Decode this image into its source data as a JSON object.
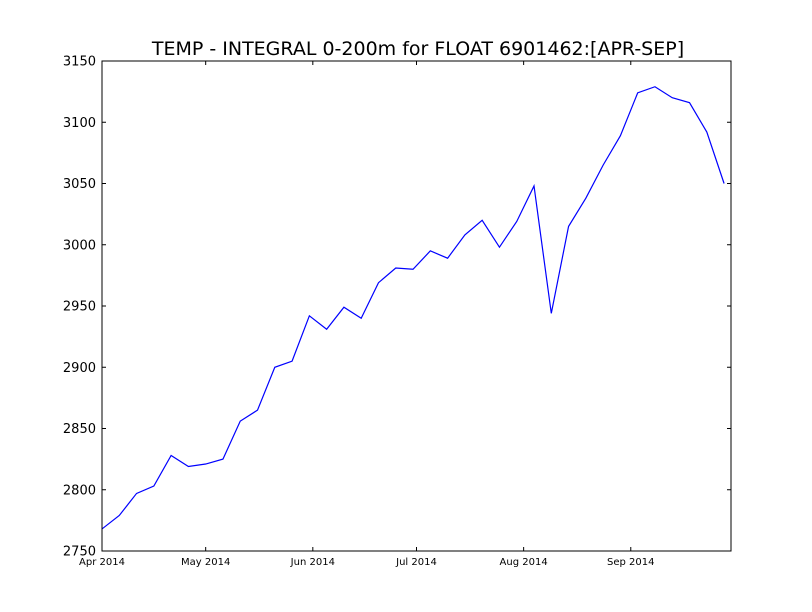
{
  "chart_data": {
    "type": "line",
    "title": "TEMP - INTEGRAL 0-200m for FLOAT 6901462:[APR-SEP]",
    "xlabel": "",
    "ylabel": "",
    "x_axis_type": "date",
    "xlim": [
      "2014-04-01",
      "2014-09-30"
    ],
    "ylim": [
      2750,
      3150
    ],
    "grid": false,
    "x_ticks": [
      {
        "value": "2014-04-01",
        "label": "Apr 2014"
      },
      {
        "value": "2014-05-01",
        "label": "May 2014"
      },
      {
        "value": "2014-06-01",
        "label": "Jun 2014"
      },
      {
        "value": "2014-07-01",
        "label": "Jul 2014"
      },
      {
        "value": "2014-08-01",
        "label": "Aug 2014"
      },
      {
        "value": "2014-09-01",
        "label": "Sep 2014"
      }
    ],
    "y_ticks": [
      {
        "value": 2750,
        "label": "2750"
      },
      {
        "value": 2800,
        "label": "2800"
      },
      {
        "value": 2850,
        "label": "2850"
      },
      {
        "value": 2900,
        "label": "2900"
      },
      {
        "value": 2950,
        "label": "2950"
      },
      {
        "value": 3000,
        "label": "3000"
      },
      {
        "value": 3050,
        "label": "3050"
      },
      {
        "value": 3100,
        "label": "3100"
      },
      {
        "value": 3150,
        "label": "3150"
      }
    ],
    "series": [
      {
        "color": "#0000ff",
        "points": [
          {
            "x": "2014-04-01",
            "y": 2768
          },
          {
            "x": "2014-04-06",
            "y": 2779
          },
          {
            "x": "2014-04-11",
            "y": 2797
          },
          {
            "x": "2014-04-16",
            "y": 2803
          },
          {
            "x": "2014-04-21",
            "y": 2828
          },
          {
            "x": "2014-04-26",
            "y": 2819
          },
          {
            "x": "2014-05-01",
            "y": 2821
          },
          {
            "x": "2014-05-06",
            "y": 2825
          },
          {
            "x": "2014-05-11",
            "y": 2856
          },
          {
            "x": "2014-05-16",
            "y": 2865
          },
          {
            "x": "2014-05-21",
            "y": 2900
          },
          {
            "x": "2014-05-26",
            "y": 2905
          },
          {
            "x": "2014-05-31",
            "y": 2942
          },
          {
            "x": "2014-06-05",
            "y": 2931
          },
          {
            "x": "2014-06-10",
            "y": 2949
          },
          {
            "x": "2014-06-15",
            "y": 2940
          },
          {
            "x": "2014-06-20",
            "y": 2969
          },
          {
            "x": "2014-06-25",
            "y": 2981
          },
          {
            "x": "2014-06-30",
            "y": 2980
          },
          {
            "x": "2014-07-05",
            "y": 2995
          },
          {
            "x": "2014-07-10",
            "y": 2989
          },
          {
            "x": "2014-07-15",
            "y": 3008
          },
          {
            "x": "2014-07-20",
            "y": 3020
          },
          {
            "x": "2014-07-25",
            "y": 2998
          },
          {
            "x": "2014-07-30",
            "y": 3019
          },
          {
            "x": "2014-08-04",
            "y": 3048
          },
          {
            "x": "2014-08-09",
            "y": 2944
          },
          {
            "x": "2014-08-14",
            "y": 3015
          },
          {
            "x": "2014-08-19",
            "y": 3038
          },
          {
            "x": "2014-08-24",
            "y": 3065
          },
          {
            "x": "2014-08-29",
            "y": 3089
          },
          {
            "x": "2014-09-03",
            "y": 3124
          },
          {
            "x": "2014-09-08",
            "y": 3129
          },
          {
            "x": "2014-09-13",
            "y": 3120
          },
          {
            "x": "2014-09-18",
            "y": 3116
          },
          {
            "x": "2014-09-23",
            "y": 3092
          },
          {
            "x": "2014-09-28",
            "y": 3050
          }
        ]
      }
    ]
  }
}
